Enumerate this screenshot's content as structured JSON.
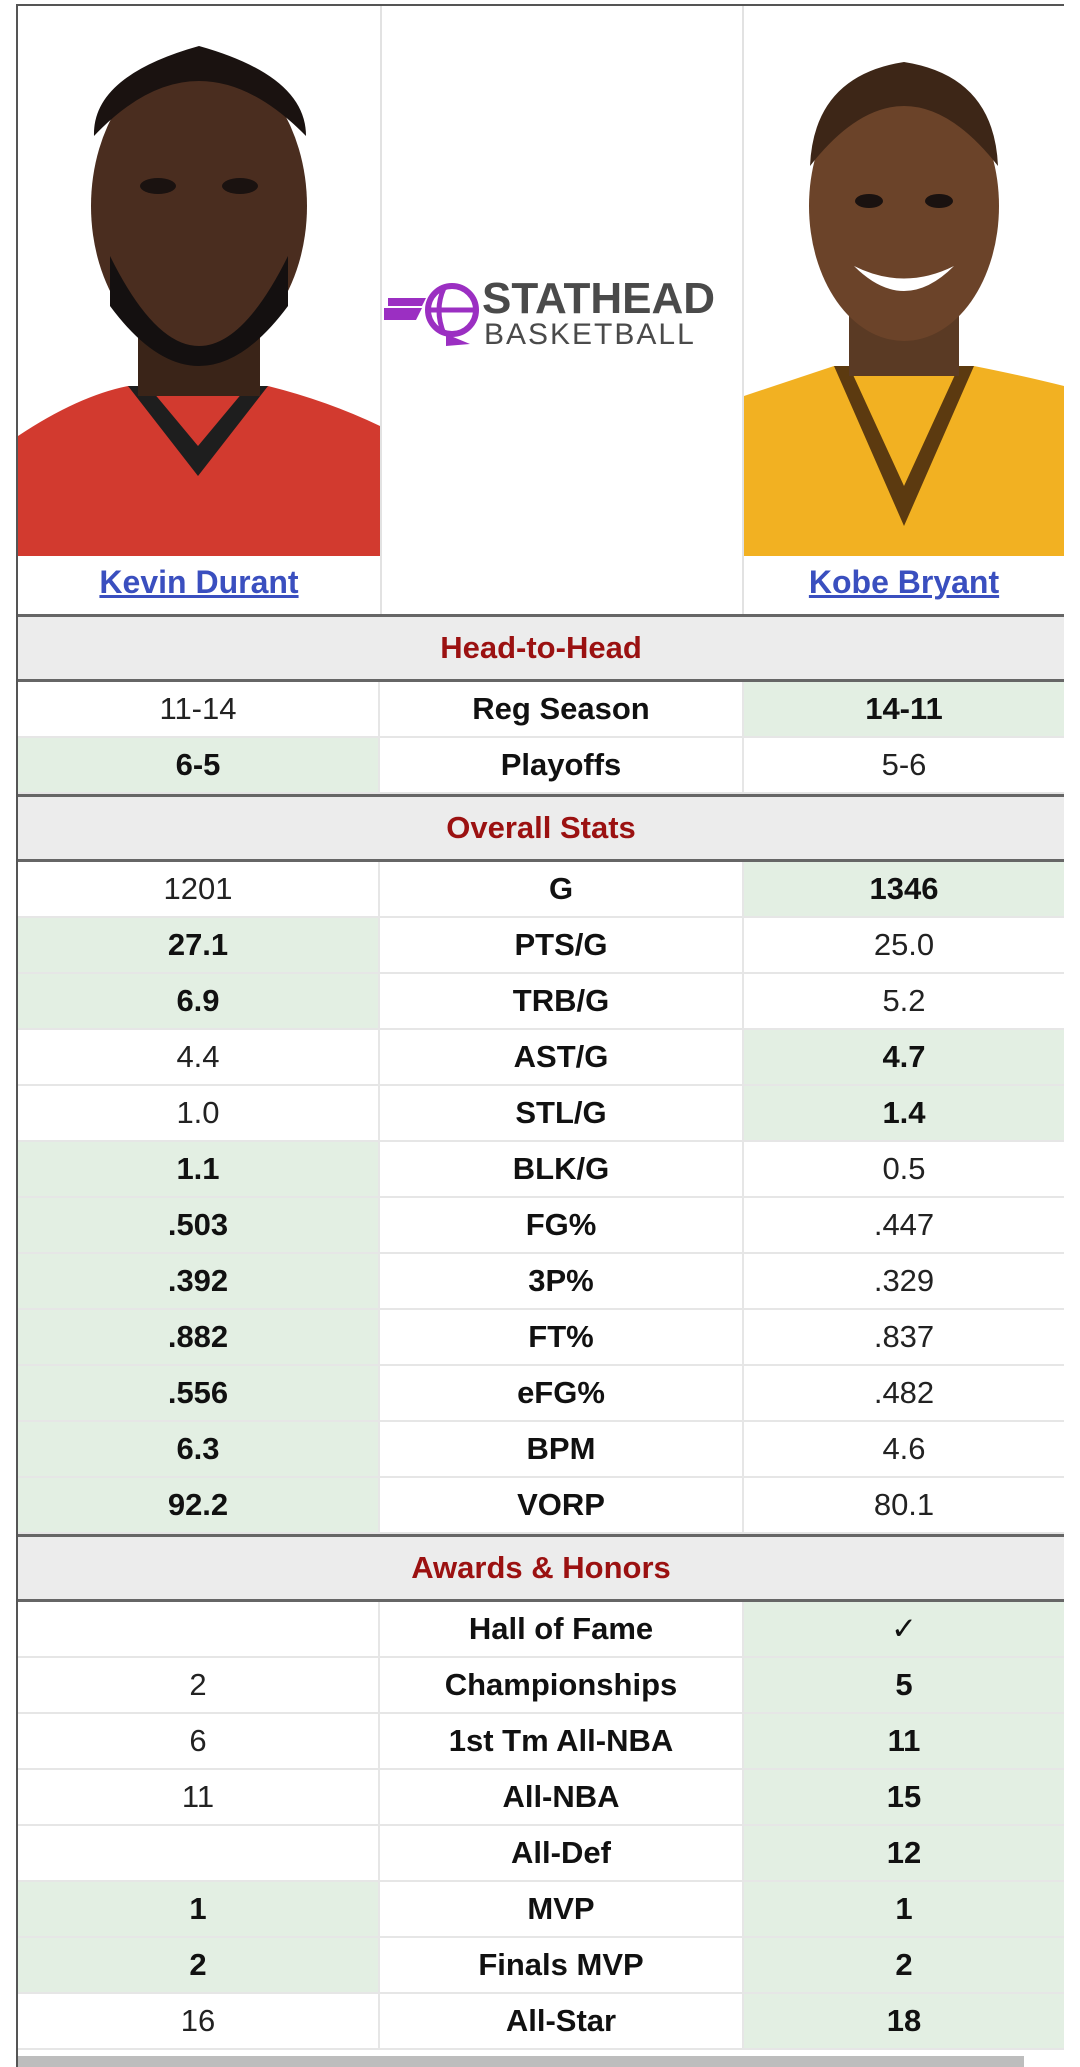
{
  "players": {
    "left": {
      "name": "Kevin Durant"
    },
    "right": {
      "name": "Kobe Bryant"
    }
  },
  "logo": {
    "line1": "STATHEAD",
    "line2": "BASKETBALL",
    "color": "#9b2fc2"
  },
  "colors": {
    "section_title": "#9b1111",
    "winner_bg": "#e3efe3",
    "link": "#3a4fbf"
  },
  "sections": {
    "head_to_head": "Head-to-Head",
    "overall": "Overall Stats",
    "awards": "Awards & Honors"
  },
  "h2h": [
    {
      "left": "11-14",
      "label": "Reg Season",
      "right": "14-11",
      "winner": "right"
    },
    {
      "left": "6-5",
      "label": "Playoffs",
      "right": "5-6",
      "winner": "left"
    }
  ],
  "overall": [
    {
      "left": "1201",
      "label": "G",
      "right": "1346",
      "winner": "right"
    },
    {
      "left": "27.1",
      "label": "PTS/G",
      "right": "25.0",
      "winner": "left"
    },
    {
      "left": "6.9",
      "label": "TRB/G",
      "right": "5.2",
      "winner": "left"
    },
    {
      "left": "4.4",
      "label": "AST/G",
      "right": "4.7",
      "winner": "right"
    },
    {
      "left": "1.0",
      "label": "STL/G",
      "right": "1.4",
      "winner": "right"
    },
    {
      "left": "1.1",
      "label": "BLK/G",
      "right": "0.5",
      "winner": "left"
    },
    {
      "left": ".503",
      "label": "FG%",
      "right": ".447",
      "winner": "left"
    },
    {
      "left": ".392",
      "label": "3P%",
      "right": ".329",
      "winner": "left"
    },
    {
      "left": ".882",
      "label": "FT%",
      "right": ".837",
      "winner": "left"
    },
    {
      "left": ".556",
      "label": "eFG%",
      "right": ".482",
      "winner": "left"
    },
    {
      "left": "6.3",
      "label": "BPM",
      "right": "4.6",
      "winner": "left"
    },
    {
      "left": "92.2",
      "label": "VORP",
      "right": "80.1",
      "winner": "left"
    }
  ],
  "awards": [
    {
      "left": "",
      "label": "Hall of Fame",
      "right": "✓",
      "winner": "right"
    },
    {
      "left": "2",
      "label": "Championships",
      "right": "5",
      "winner": "right"
    },
    {
      "left": "6",
      "label": "1st Tm All-NBA",
      "right": "11",
      "winner": "right"
    },
    {
      "left": "11",
      "label": "All-NBA",
      "right": "15",
      "winner": "right"
    },
    {
      "left": "",
      "label": "All-Def",
      "right": "12",
      "winner": "right"
    },
    {
      "left": "1",
      "label": "MVP",
      "right": "1",
      "winner": "both"
    },
    {
      "left": "2",
      "label": "Finals MVP",
      "right": "2",
      "winner": "both"
    },
    {
      "left": "16",
      "label": "All-Star",
      "right": "18",
      "winner": "right"
    }
  ]
}
